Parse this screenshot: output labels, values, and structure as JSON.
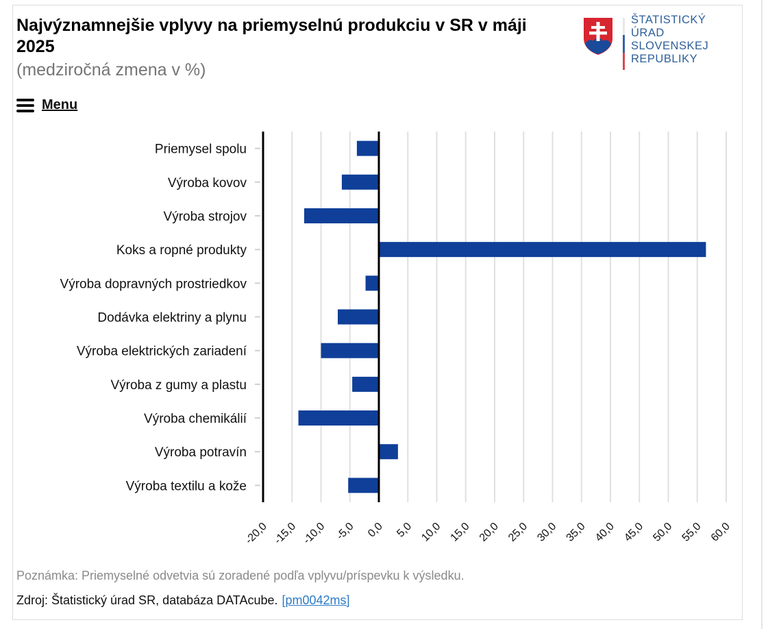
{
  "header": {
    "title": "Najvýznamnejšie vplyvy na priemyselnú produkciu v SR v máji 2025",
    "subtitle": "(medziročná zmena v %)",
    "menu_label": "Menu",
    "menu_icon": "hamburger-icon"
  },
  "logo": {
    "emblem_icon": "slovak-coat-of-arms-icon",
    "lines": [
      "ŠTATISTICKÝ",
      "ÚRAD",
      "SLOVENSKEJ",
      "REPUBLIKY"
    ],
    "text_color": "#2d5f9a"
  },
  "chart_data": {
    "type": "bar",
    "orientation": "horizontal",
    "title": "Najvýznamnejšie vplyvy na priemyselnú produkciu v SR v máji 2025",
    "subtitle": "(medziročná zmena v %)",
    "xlabel": "",
    "ylabel": "",
    "categories": [
      "Priemysel spolu",
      "Výroba kovov",
      "Výroba strojov",
      "Koks a ropné produkty",
      "Výroba dopravných prostriedkov",
      "Dodávka elektriny a plynu",
      "Výroba elektrických zariadení",
      "Výroba z gumy a plastu",
      "Výroba chemikálií",
      "Výroba potravín",
      "Výroba textilu a kože"
    ],
    "values": [
      -3.8,
      -6.4,
      -12.9,
      56.5,
      -2.3,
      -7.1,
      -10.0,
      -4.6,
      -13.9,
      3.3,
      -5.3
    ],
    "xlim": [
      -20,
      60
    ],
    "xticks": [
      -20,
      -15,
      -10,
      -5,
      0,
      5,
      10,
      15,
      20,
      25,
      30,
      35,
      40,
      45,
      50,
      55,
      60
    ],
    "xtick_labels": [
      "-20,0",
      "-15,0",
      "-10,0",
      "-5,0",
      "0,0",
      "5,0",
      "10,0",
      "15,0",
      "20,0",
      "25,0",
      "30,0",
      "35,0",
      "40,0",
      "45,0",
      "50,0",
      "55,0",
      "60,0"
    ],
    "grid": true,
    "legend": "none",
    "bar_color": "#0f3f98",
    "grid_color": "#e0e0e0"
  },
  "footer": {
    "note": "Poznámka: Priemyselné odvetvia sú zoradené podľa vplyvu/príspevku k výsledku.",
    "source_prefix": "Zdroj: Štatistický úrad SR, databáza DATAcube.",
    "source_link": "[pm0042ms]",
    "link_color": "#2e7bc4"
  }
}
